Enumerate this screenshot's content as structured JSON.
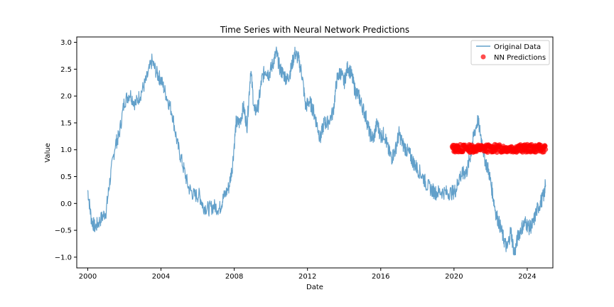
{
  "chart_data": {
    "type": "line",
    "title": "Time Series with Neural Network Predictions",
    "xlabel": "Date",
    "ylabel": "Value",
    "xlim": [
      1999.4,
      2025.4
    ],
    "ylim": [
      -1.2,
      3.1
    ],
    "x_ticks": [
      {
        "value": 2000,
        "label": "2000"
      },
      {
        "value": 2004,
        "label": "2004"
      },
      {
        "value": 2008,
        "label": "2008"
      },
      {
        "value": 2012,
        "label": "2012"
      },
      {
        "value": 2016,
        "label": "2016"
      },
      {
        "value": 2020,
        "label": "2020"
      },
      {
        "value": 2024,
        "label": "2024"
      }
    ],
    "y_ticks": [
      {
        "value": -1.0,
        "label": "−1.0"
      },
      {
        "value": -0.5,
        "label": "−0.5"
      },
      {
        "value": 0.0,
        "label": "0.0"
      },
      {
        "value": 0.5,
        "label": "0.5"
      },
      {
        "value": 1.0,
        "label": "1.0"
      },
      {
        "value": 1.5,
        "label": "1.5"
      },
      {
        "value": 2.0,
        "label": "2.0"
      },
      {
        "value": 2.5,
        "label": "2.5"
      },
      {
        "value": 3.0,
        "label": "3.0"
      }
    ],
    "grid": false,
    "legend": "top-right",
    "series": [
      {
        "name": "Original Data",
        "kind": "line",
        "color": "#1f77b4",
        "points": [
          [
            2000.0,
            0.25
          ],
          [
            2000.2,
            -0.3
          ],
          [
            2000.4,
            -0.45
          ],
          [
            2000.7,
            -0.3
          ],
          [
            2001.0,
            -0.15
          ],
          [
            2001.2,
            0.4
          ],
          [
            2001.5,
            1.1
          ],
          [
            2001.7,
            1.25
          ],
          [
            2002.0,
            1.9
          ],
          [
            2002.3,
            2.05
          ],
          [
            2002.6,
            1.85
          ],
          [
            2002.9,
            2.05
          ],
          [
            2003.2,
            2.3
          ],
          [
            2003.5,
            2.65
          ],
          [
            2003.8,
            2.4
          ],
          [
            2004.0,
            2.3
          ],
          [
            2004.3,
            2.0
          ],
          [
            2004.6,
            1.7
          ],
          [
            2004.9,
            1.1
          ],
          [
            2005.2,
            0.7
          ],
          [
            2005.5,
            0.3
          ],
          [
            2005.8,
            0.15
          ],
          [
            2006.1,
            0.15
          ],
          [
            2006.3,
            -0.05
          ],
          [
            2006.6,
            -0.1
          ],
          [
            2006.9,
            -0.05
          ],
          [
            2007.2,
            -0.1
          ],
          [
            2007.4,
            0.1
          ],
          [
            2007.7,
            0.3
          ],
          [
            2007.9,
            0.7
          ],
          [
            2008.1,
            1.5
          ],
          [
            2008.3,
            1.5
          ],
          [
            2008.5,
            1.8
          ],
          [
            2008.7,
            1.45
          ],
          [
            2008.9,
            2.5
          ],
          [
            2009.1,
            1.7
          ],
          [
            2009.3,
            1.8
          ],
          [
            2009.5,
            2.3
          ],
          [
            2009.7,
            2.5
          ],
          [
            2009.9,
            2.4
          ],
          [
            2010.1,
            2.6
          ],
          [
            2010.3,
            2.8
          ],
          [
            2010.5,
            2.5
          ],
          [
            2010.7,
            2.4
          ],
          [
            2010.9,
            2.3
          ],
          [
            2011.1,
            2.5
          ],
          [
            2011.3,
            2.8
          ],
          [
            2011.5,
            2.7
          ],
          [
            2011.7,
            2.4
          ],
          [
            2011.9,
            1.8
          ],
          [
            2012.1,
            1.9
          ],
          [
            2012.3,
            1.75
          ],
          [
            2012.5,
            1.5
          ],
          [
            2012.7,
            1.2
          ],
          [
            2012.9,
            1.5
          ],
          [
            2013.1,
            1.5
          ],
          [
            2013.4,
            1.7
          ],
          [
            2013.6,
            2.3
          ],
          [
            2013.8,
            2.45
          ],
          [
            2014.0,
            2.25
          ],
          [
            2014.2,
            2.55
          ],
          [
            2014.4,
            2.4
          ],
          [
            2014.6,
            2.1
          ],
          [
            2014.8,
            2.0
          ],
          [
            2015.0,
            1.8
          ],
          [
            2015.2,
            1.6
          ],
          [
            2015.4,
            1.3
          ],
          [
            2015.6,
            1.2
          ],
          [
            2015.8,
            1.5
          ],
          [
            2016.0,
            1.25
          ],
          [
            2016.2,
            1.3
          ],
          [
            2016.4,
            1.0
          ],
          [
            2016.6,
            0.85
          ],
          [
            2016.8,
            1.0
          ],
          [
            2017.0,
            1.3
          ],
          [
            2017.2,
            1.1
          ],
          [
            2017.4,
            1.0
          ],
          [
            2017.6,
            0.9
          ],
          [
            2017.8,
            0.75
          ],
          [
            2018.0,
            0.65
          ],
          [
            2018.3,
            0.5
          ],
          [
            2018.5,
            0.35
          ],
          [
            2018.8,
            0.25
          ],
          [
            2019.0,
            0.2
          ],
          [
            2019.3,
            0.22
          ],
          [
            2019.6,
            0.2
          ],
          [
            2019.9,
            0.2
          ],
          [
            2020.1,
            0.25
          ],
          [
            2020.3,
            0.5
          ],
          [
            2020.5,
            0.55
          ],
          [
            2020.7,
            0.6
          ],
          [
            2020.9,
            0.9
          ],
          [
            2021.1,
            1.3
          ],
          [
            2021.3,
            1.55
          ],
          [
            2021.5,
            1.2
          ],
          [
            2021.7,
            0.8
          ],
          [
            2021.9,
            0.6
          ],
          [
            2022.1,
            0.2
          ],
          [
            2022.3,
            -0.2
          ],
          [
            2022.5,
            -0.4
          ],
          [
            2022.7,
            -0.65
          ],
          [
            2022.9,
            -0.85
          ],
          [
            2023.1,
            -0.5
          ],
          [
            2023.3,
            -0.95
          ],
          [
            2023.5,
            -0.6
          ],
          [
            2023.7,
            -0.45
          ],
          [
            2023.9,
            -0.35
          ],
          [
            2024.1,
            -0.45
          ],
          [
            2024.3,
            -0.4
          ],
          [
            2024.5,
            -0.15
          ],
          [
            2024.7,
            0.0
          ],
          [
            2024.9,
            0.15
          ],
          [
            2025.0,
            0.35
          ]
        ]
      },
      {
        "name": "NN Predictions",
        "kind": "scatter",
        "color": "#ff0000",
        "x_start": 2019.9,
        "x_end": 2025.0,
        "y_min": 0.95,
        "y_max": 1.1
      }
    ]
  }
}
